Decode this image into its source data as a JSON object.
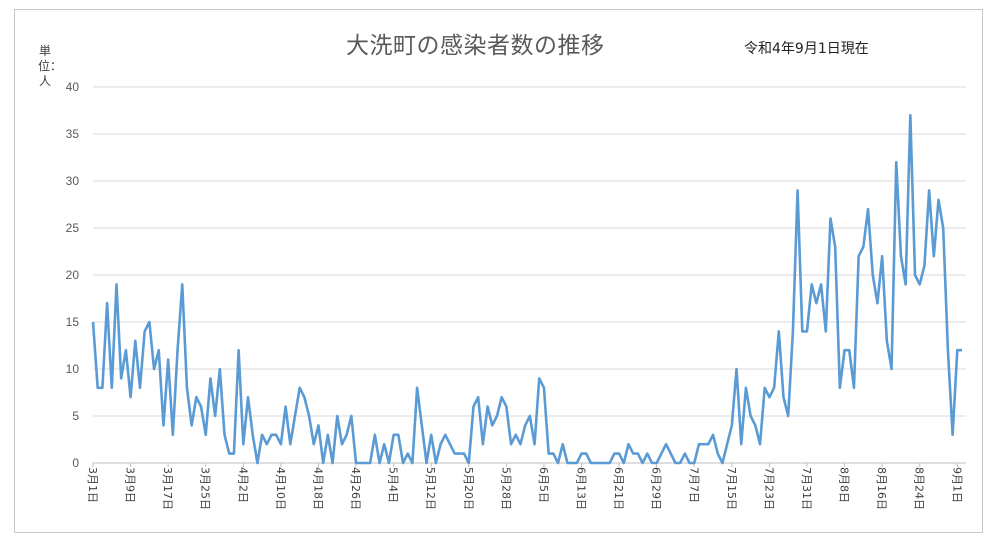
{
  "title": "大洗町の感染者数の推移",
  "subtitle": "令和4年9月1日現在",
  "unit_label": "単位：人",
  "chart_data": {
    "type": "line",
    "title": "大洗町の感染者数の推移",
    "ylabel": "単位：人",
    "xlabel": "",
    "ylim": [
      0,
      40
    ],
    "yticks": [
      0,
      5,
      10,
      15,
      20,
      25,
      30,
      35,
      40
    ],
    "grid": true,
    "legend": "none",
    "line_color": "#5b9bd5",
    "x_start": "3月1日",
    "x_end": "9月1日",
    "x_tick_labels": [
      "3月1日",
      "3月9日",
      "3月17日",
      "3月25日",
      "4月2日",
      "4月10日",
      "4月18日",
      "4月26日",
      "5月4日",
      "5月12日",
      "5月20日",
      "5月28日",
      "6月5日",
      "6月13日",
      "6月21日",
      "6月29日",
      "7月7日",
      "7月15日",
      "7月23日",
      "7月31日",
      "8月8日",
      "8月16日",
      "8月24日",
      "9月1日"
    ],
    "series": [
      {
        "values": [
          15,
          8,
          8,
          17,
          8,
          19,
          9,
          12,
          7,
          13,
          8,
          14,
          15,
          10,
          12,
          4,
          11,
          3,
          12,
          19,
          8,
          4,
          7,
          6,
          3,
          9,
          5,
          10,
          3,
          1,
          1,
          12,
          2,
          7,
          3,
          0,
          3,
          2,
          3,
          3,
          2,
          6,
          2,
          5,
          8,
          7,
          5,
          2,
          4,
          0,
          3,
          0,
          5,
          2,
          3,
          5,
          0,
          0,
          0,
          0,
          3,
          0,
          2,
          0,
          3,
          3,
          0,
          1,
          0,
          8,
          4,
          0,
          3,
          0,
          2,
          3,
          2,
          1,
          1,
          1,
          0,
          6,
          7,
          2,
          6,
          4,
          5,
          7,
          6,
          2,
          3,
          2,
          4,
          5,
          2,
          9,
          8,
          1,
          1,
          0,
          2,
          0,
          0,
          0,
          1,
          1,
          0,
          0,
          0,
          0,
          0,
          1,
          1,
          0,
          2,
          1,
          1,
          0,
          1,
          0,
          0,
          1,
          2,
          1,
          0,
          0,
          1,
          0,
          0,
          2,
          2,
          2,
          3,
          1,
          0,
          2,
          4,
          10,
          2,
          8,
          5,
          4,
          2,
          8,
          7,
          8,
          14,
          7,
          5,
          14,
          29,
          14,
          14,
          19,
          17,
          19,
          14,
          26,
          23,
          8,
          12,
          12,
          8,
          22,
          23,
          27,
          20,
          17,
          22,
          13,
          10,
          32,
          22,
          19,
          37,
          20,
          19,
          21,
          29,
          22,
          28,
          25,
          12,
          3,
          12,
          12
        ]
      }
    ]
  }
}
